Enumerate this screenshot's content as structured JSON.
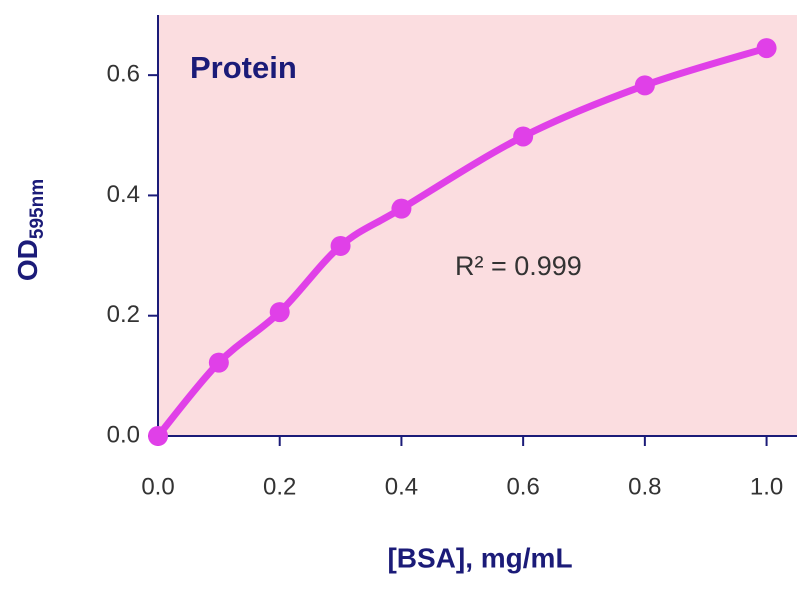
{
  "chart_data": {
    "type": "line",
    "annotation": "Protein",
    "fit_label": "R² = 0.999",
    "x_label": "[BSA], mg/mL",
    "y_label": "OD",
    "y_label_sub": "595nm",
    "x": [
      0.0,
      0.1,
      0.2,
      0.3,
      0.4,
      0.6,
      0.8,
      1.0
    ],
    "series": [
      {
        "color": "#e040e8",
        "values": [
          0.0,
          0.122,
          0.206,
          0.316,
          0.378,
          0.498,
          0.583,
          0.645
        ]
      }
    ],
    "xlim": [
      0,
      1.05
    ],
    "ylim": [
      0,
      0.7
    ],
    "xticks": [
      {
        "value": 0,
        "label": "0.0"
      },
      {
        "value": 0.2,
        "label": "0.2"
      },
      {
        "value": 0.4,
        "label": "0.4"
      },
      {
        "value": 0.6,
        "label": "0.6"
      },
      {
        "value": 0.8,
        "label": "0.8"
      },
      {
        "value": 1.0,
        "label": "1.0"
      }
    ],
    "yticks": [
      {
        "value": 0,
        "label": "0.0"
      },
      {
        "value": 0.2,
        "label": "0.2"
      },
      {
        "value": 0.4,
        "label": "0.4"
      },
      {
        "value": 0.6,
        "label": "0.6"
      }
    ],
    "background": "#fbdde0"
  }
}
